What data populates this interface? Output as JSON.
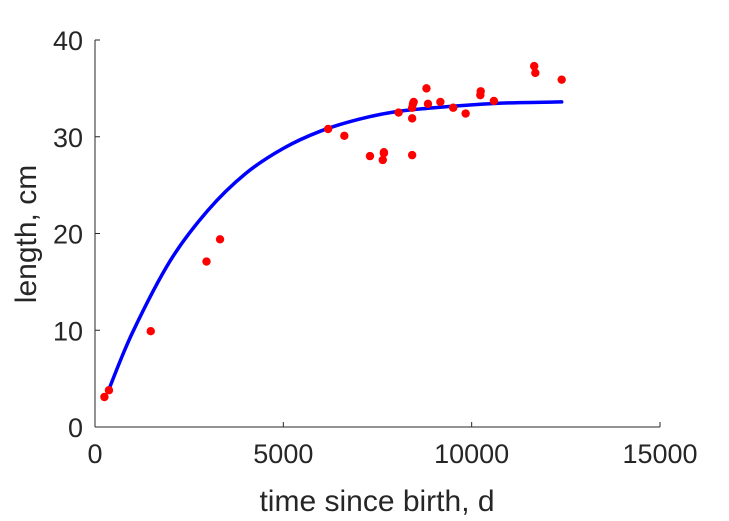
{
  "chart_data": {
    "type": "scatter",
    "title": "",
    "xlabel": "time since birth, d",
    "ylabel": "length, cm",
    "xlim": [
      0,
      15000
    ],
    "ylim": [
      0,
      40
    ],
    "xticks": [
      0,
      5000,
      10000,
      15000
    ],
    "yticks": [
      0,
      10,
      20,
      30,
      40
    ],
    "xtick_labels": [
      "0",
      "5000",
      "10000",
      "15000"
    ],
    "ytick_labels": [
      "0",
      "10",
      "20",
      "30",
      "40"
    ],
    "grid": false,
    "colors": {
      "points": "#ff0000",
      "fit": "#0000ff",
      "axes": "#262626"
    },
    "series": [
      {
        "kind": "points",
        "x": [
          250,
          370,
          1480,
          2960,
          3320,
          6190,
          6620,
          7300,
          7640,
          7670,
          7670,
          8060,
          8420,
          8420,
          8420,
          8440,
          8460,
          8800,
          8840,
          9170,
          9510,
          9840,
          10230,
          10240,
          10590,
          11660,
          11690,
          12390
        ],
        "y": [
          3.1,
          3.8,
          9.9,
          17.1,
          19.4,
          30.8,
          30.1,
          28.0,
          27.6,
          28.3,
          28.4,
          32.5,
          28.1,
          31.9,
          33.0,
          33.4,
          33.6,
          35.0,
          33.4,
          33.6,
          33.0,
          32.4,
          34.3,
          34.7,
          33.7,
          37.3,
          36.6,
          35.9
        ]
      },
      {
        "kind": "fit-line",
        "x": [
          370,
          1000,
          2000,
          3000,
          4000,
          5000,
          6000,
          7000,
          8000,
          9000,
          10000,
          11000,
          12390
        ],
        "y": [
          3.9,
          9.8,
          17.2,
          22.4,
          26.2,
          28.8,
          30.6,
          31.8,
          32.6,
          33.0,
          33.3,
          33.5,
          33.6
        ]
      }
    ]
  }
}
